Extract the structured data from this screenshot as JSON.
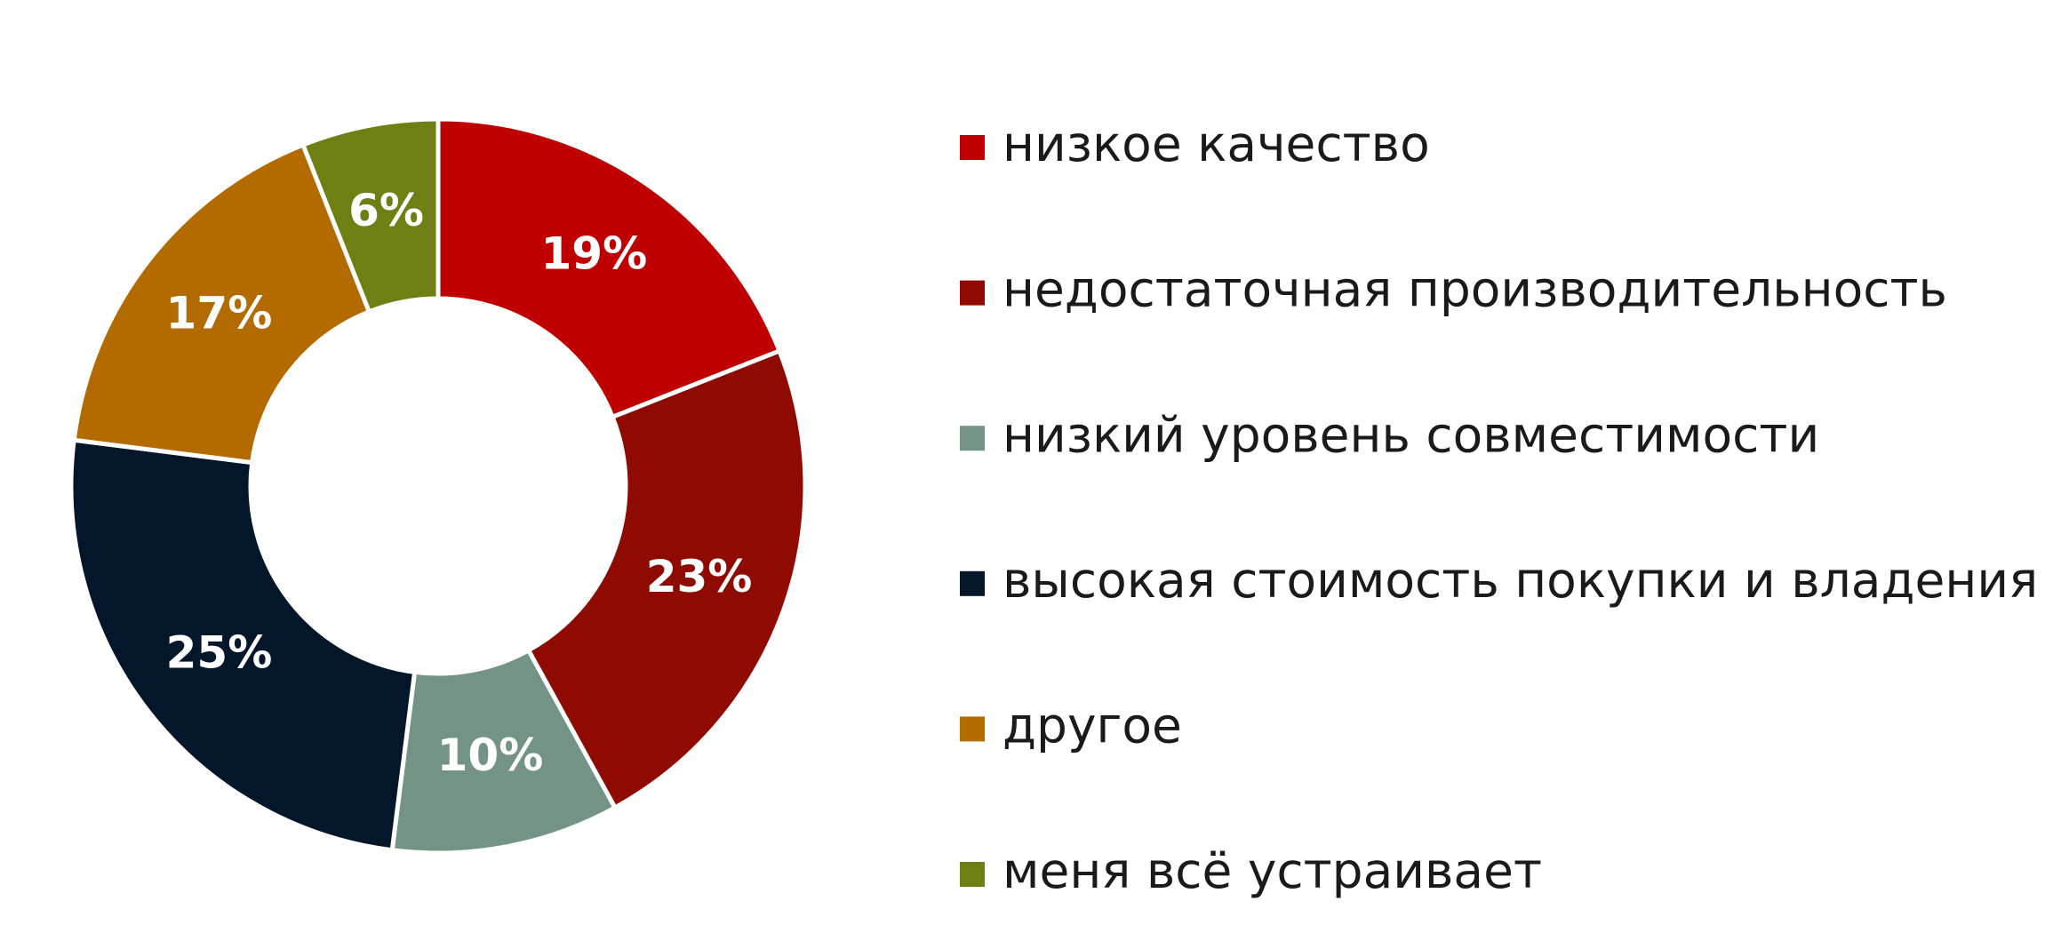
{
  "chart_data": {
    "type": "donut",
    "categories": [
      "низкое качество",
      "недостаточная производительность",
      "низкий уровень совместимости",
      "высокая стоимость покупки и владения",
      "другое",
      "меня всё устраивает"
    ],
    "values": [
      19,
      23,
      10,
      25,
      17,
      6
    ],
    "value_labels": [
      "19%",
      "23%",
      "10%",
      "25%",
      "17%",
      "6%"
    ],
    "colors": [
      "#c00000",
      "#8f0a00",
      "#739484",
      "#04162a",
      "#b36b00",
      "#6e7f14"
    ],
    "legend": "right"
  }
}
